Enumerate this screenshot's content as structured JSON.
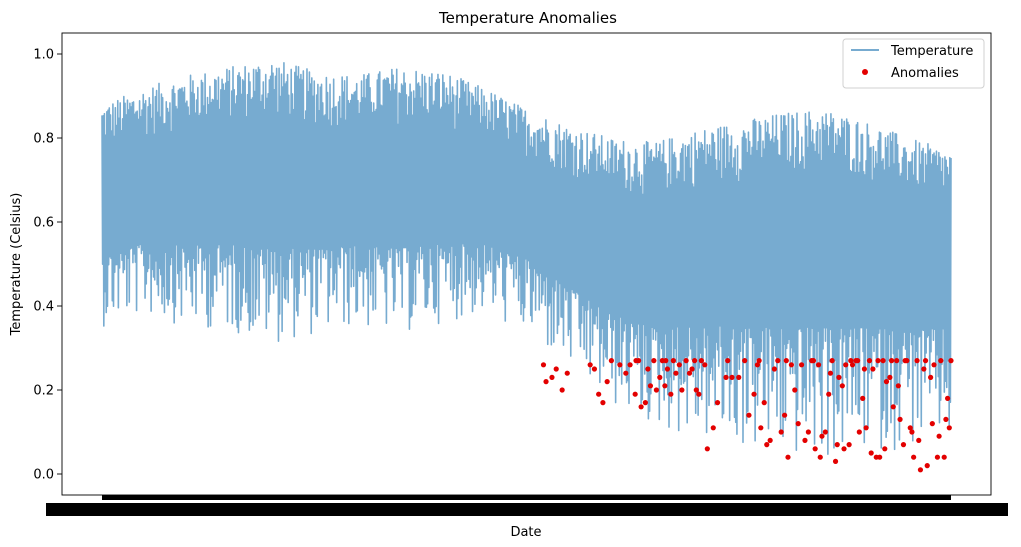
{
  "chart_data": {
    "type": "line",
    "title": "Temperature Anomalies",
    "xlabel": "Date",
    "ylabel": "Temperature (Celsius)",
    "ylim": [
      -0.05,
      1.05
    ],
    "yticks": [
      0.0,
      0.2,
      0.4,
      0.6,
      0.8,
      1.0
    ],
    "ytick_labels": [
      "0.0",
      "0.2",
      "0.4",
      "0.6",
      "0.8",
      "1.0"
    ],
    "legend_position": "top-right",
    "grid": false,
    "colors": {
      "line": "#77abd0",
      "anomaly": "#e30000",
      "tick_band": "#000000"
    },
    "series": [
      {
        "name": "Temperature",
        "kind": "line",
        "envelope": {
          "x": [
            0.0,
            0.05,
            0.1,
            0.15,
            0.2,
            0.25,
            0.3,
            0.35,
            0.4,
            0.45,
            0.5,
            0.55,
            0.6,
            0.65,
            0.7,
            0.75,
            0.8,
            0.85,
            0.9,
            0.95,
            1.0
          ],
          "upper": [
            0.88,
            0.92,
            0.95,
            0.97,
            0.99,
            0.96,
            0.95,
            0.97,
            0.96,
            0.92,
            0.87,
            0.83,
            0.8,
            0.79,
            0.82,
            0.84,
            0.86,
            0.87,
            0.84,
            0.8,
            0.77
          ],
          "lower": [
            0.35,
            0.38,
            0.35,
            0.34,
            0.31,
            0.33,
            0.35,
            0.33,
            0.36,
            0.38,
            0.33,
            0.25,
            0.16,
            0.11,
            0.08,
            0.06,
            0.04,
            0.03,
            0.05,
            0.06,
            0.08
          ],
          "center": [
            0.62,
            0.64,
            0.65,
            0.66,
            0.66,
            0.65,
            0.65,
            0.65,
            0.65,
            0.64,
            0.61,
            0.55,
            0.5,
            0.48,
            0.5,
            0.51,
            0.52,
            0.52,
            0.51,
            0.5,
            0.49
          ]
        }
      },
      {
        "name": "Anomalies",
        "kind": "scatter",
        "points": [
          [
            0.52,
            0.26
          ],
          [
            0.523,
            0.22
          ],
          [
            0.53,
            0.23
          ],
          [
            0.535,
            0.25
          ],
          [
            0.542,
            0.2
          ],
          [
            0.548,
            0.24
          ],
          [
            0.575,
            0.26
          ],
          [
            0.58,
            0.25
          ],
          [
            0.585,
            0.19
          ],
          [
            0.59,
            0.17
          ],
          [
            0.595,
            0.22
          ],
          [
            0.6,
            0.27
          ],
          [
            0.61,
            0.26
          ],
          [
            0.617,
            0.24
          ],
          [
            0.622,
            0.26
          ],
          [
            0.628,
            0.19
          ],
          [
            0.632,
            0.27
          ],
          [
            0.635,
            0.16
          ],
          [
            0.64,
            0.17
          ],
          [
            0.643,
            0.25
          ],
          [
            0.646,
            0.21
          ],
          [
            0.65,
            0.27
          ],
          [
            0.653,
            0.2
          ],
          [
            0.657,
            0.23
          ],
          [
            0.66,
            0.27
          ],
          [
            0.663,
            0.21
          ],
          [
            0.666,
            0.25
          ],
          [
            0.67,
            0.19
          ],
          [
            0.673,
            0.27
          ],
          [
            0.676,
            0.24
          ],
          [
            0.68,
            0.26
          ],
          [
            0.683,
            0.2
          ],
          [
            0.688,
            0.27
          ],
          [
            0.692,
            0.24
          ],
          [
            0.695,
            0.25
          ],
          [
            0.7,
            0.2
          ],
          [
            0.703,
            0.19
          ],
          [
            0.706,
            0.27
          ],
          [
            0.71,
            0.26
          ],
          [
            0.713,
            0.06
          ],
          [
            0.72,
            0.11
          ],
          [
            0.725,
            0.17
          ],
          [
            0.735,
            0.23
          ],
          [
            0.742,
            0.23
          ],
          [
            0.75,
            0.23
          ],
          [
            0.757,
            0.27
          ],
          [
            0.762,
            0.14
          ],
          [
            0.768,
            0.19
          ],
          [
            0.772,
            0.26
          ],
          [
            0.776,
            0.11
          ],
          [
            0.78,
            0.17
          ],
          [
            0.783,
            0.07
          ],
          [
            0.787,
            0.08
          ],
          [
            0.792,
            0.25
          ],
          [
            0.796,
            0.27
          ],
          [
            0.8,
            0.1
          ],
          [
            0.804,
            0.14
          ],
          [
            0.808,
            0.04
          ],
          [
            0.812,
            0.26
          ],
          [
            0.816,
            0.2
          ],
          [
            0.82,
            0.12
          ],
          [
            0.824,
            0.26
          ],
          [
            0.828,
            0.08
          ],
          [
            0.832,
            0.1
          ],
          [
            0.836,
            0.27
          ],
          [
            0.84,
            0.06
          ],
          [
            0.844,
            0.26
          ],
          [
            0.848,
            0.09
          ],
          [
            0.852,
            0.1
          ],
          [
            0.856,
            0.19
          ],
          [
            0.86,
            0.27
          ],
          [
            0.864,
            0.03
          ],
          [
            0.868,
            0.23
          ],
          [
            0.872,
            0.21
          ],
          [
            0.876,
            0.26
          ],
          [
            0.88,
            0.07
          ],
          [
            0.884,
            0.26
          ],
          [
            0.888,
            0.27
          ],
          [
            0.892,
            0.1
          ],
          [
            0.896,
            0.18
          ],
          [
            0.9,
            0.11
          ],
          [
            0.904,
            0.27
          ],
          [
            0.908,
            0.25
          ],
          [
            0.912,
            0.04
          ],
          [
            0.916,
            0.04
          ],
          [
            0.92,
            0.27
          ],
          [
            0.924,
            0.22
          ],
          [
            0.928,
            0.23
          ],
          [
            0.932,
            0.16
          ],
          [
            0.936,
            0.27
          ],
          [
            0.94,
            0.13
          ],
          [
            0.944,
            0.07
          ],
          [
            0.948,
            0.27
          ],
          [
            0.952,
            0.11
          ],
          [
            0.956,
            0.04
          ],
          [
            0.96,
            0.27
          ],
          [
            0.964,
            0.01
          ],
          [
            0.968,
            0.25
          ],
          [
            0.972,
            0.02
          ],
          [
            0.976,
            0.23
          ],
          [
            0.98,
            0.26
          ],
          [
            0.984,
            0.04
          ],
          [
            0.988,
            0.27
          ],
          [
            0.992,
            0.04
          ],
          [
            0.996,
            0.18
          ],
          [
            1.0,
            0.27
          ],
          [
            0.629,
            0.27
          ],
          [
            0.664,
            0.27
          ],
          [
            0.698,
            0.27
          ],
          [
            0.737,
            0.27
          ],
          [
            0.774,
            0.27
          ],
          [
            0.806,
            0.27
          ],
          [
            0.838,
            0.27
          ],
          [
            0.846,
            0.04
          ],
          [
            0.858,
            0.24
          ],
          [
            0.866,
            0.07
          ],
          [
            0.874,
            0.06
          ],
          [
            0.882,
            0.27
          ],
          [
            0.89,
            0.27
          ],
          [
            0.898,
            0.25
          ],
          [
            0.906,
            0.05
          ],
          [
            0.914,
            0.27
          ],
          [
            0.922,
            0.06
          ],
          [
            0.93,
            0.27
          ],
          [
            0.938,
            0.21
          ],
          [
            0.946,
            0.27
          ],
          [
            0.954,
            0.1
          ],
          [
            0.962,
            0.08
          ],
          [
            0.97,
            0.27
          ],
          [
            0.978,
            0.12
          ],
          [
            0.986,
            0.09
          ],
          [
            0.994,
            0.13
          ],
          [
            0.998,
            0.11
          ]
        ]
      }
    ]
  }
}
